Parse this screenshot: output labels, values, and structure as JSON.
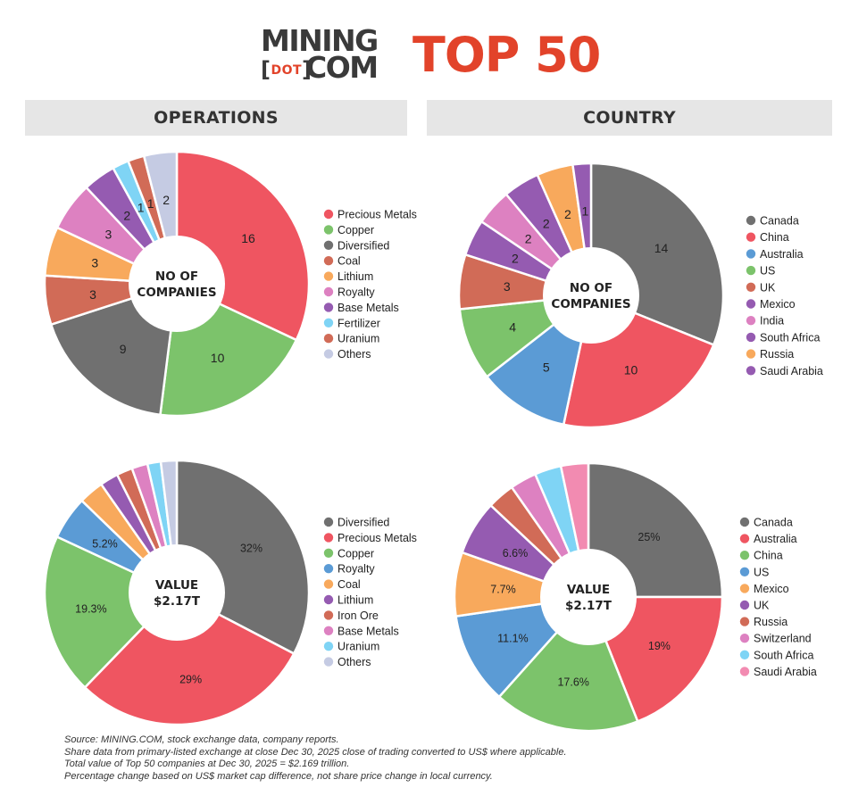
{
  "header": {
    "logo_line1": "MINING",
    "logo_dot": "DOT",
    "logo_line2": "COM",
    "title": "TOP 50"
  },
  "sections": {
    "operations": "OPERATIONS",
    "country": "COUNTRY"
  },
  "colors": {
    "accent": "#e2432a",
    "gray": "#707070",
    "red": "#ef5561",
    "green": "#7cc36b",
    "blue": "#5b9bd5",
    "orange": "#f8a95c",
    "terracotta": "#d16b57",
    "purple": "#955bb1",
    "pink": "#dd81c1",
    "lightblue": "#7fd4f5",
    "lavender": "#c5cbe3",
    "rose": "#f28bb1"
  },
  "chart_data": [
    {
      "type": "pie",
      "name": "operations-count",
      "center_label": [
        "NO OF",
        "COMPANIES"
      ],
      "categories": [
        "Precious Metals",
        "Copper",
        "Diversified",
        "Coal",
        "Lithium",
        "Royalty",
        "Base Metals",
        "Fertilizer",
        "Uranium",
        "Others"
      ],
      "values": [
        16,
        10,
        9,
        3,
        3,
        3,
        2,
        1,
        1,
        2
      ],
      "labels": [
        "16",
        "10",
        "9",
        "3",
        "3",
        "3",
        "2",
        "1",
        "1",
        "2"
      ],
      "slice_colors": [
        "#ef5561",
        "#7cc36b",
        "#707070",
        "#d16b57",
        "#f8a95c",
        "#dd81c1",
        "#955bb1",
        "#7fd4f5",
        "#d16b57",
        "#c5cbe3"
      ],
      "legend_colors": [
        "#ef5561",
        "#7cc36b",
        "#707070",
        "#d16b57",
        "#f8a95c",
        "#dd81c1",
        "#955bb1",
        "#7fd4f5",
        "#d16b57",
        "#c5cbe3"
      ],
      "legend_position": "right"
    },
    {
      "type": "pie",
      "name": "country-count",
      "center_label": [
        "NO OF",
        "COMPANIES"
      ],
      "categories": [
        "Canada",
        "China",
        "Australia",
        "US",
        "UK",
        "Mexico",
        "India",
        "South Africa",
        "Russia",
        "Saudi Arabia"
      ],
      "values": [
        14,
        10,
        5,
        4,
        3,
        2,
        2,
        2,
        2,
        1
      ],
      "labels": [
        "14",
        "10",
        "5",
        "4",
        "3",
        "2",
        "2",
        "2",
        "2",
        "1"
      ],
      "slice_colors": [
        "#707070",
        "#ef5561",
        "#5b9bd5",
        "#7cc36b",
        "#d16b57",
        "#955bb1",
        "#dd81c1",
        "#955bb1",
        "#f8a95c",
        "#955bb1"
      ],
      "legend_colors": [
        "#707070",
        "#ef5561",
        "#5b9bd5",
        "#7cc36b",
        "#d16b57",
        "#955bb1",
        "#dd81c1",
        "#955bb1",
        "#f8a95c",
        "#955bb1"
      ],
      "legend_position": "right"
    },
    {
      "type": "pie",
      "name": "operations-value",
      "center_label": [
        "VALUE",
        "$2.17T"
      ],
      "categories": [
        "Diversified",
        "Precious Metals",
        "Copper",
        "Royalty",
        "Coal",
        "Lithium",
        "Iron Ore",
        "Base Metals",
        "Uranium",
        "Others"
      ],
      "values": [
        32,
        29,
        19.3,
        5.2,
        3,
        2.2,
        1.9,
        1.9,
        1.6,
        1.9
      ],
      "labels": [
        "32%",
        "29%",
        "19.3%",
        "5.2%",
        "",
        "",
        "",
        "",
        "",
        ""
      ],
      "slice_colors": [
        "#707070",
        "#ef5561",
        "#7cc36b",
        "#5b9bd5",
        "#f8a95c",
        "#955bb1",
        "#d16b57",
        "#dd81c1",
        "#7fd4f5",
        "#c5cbe3"
      ],
      "legend_colors": [
        "#707070",
        "#ef5561",
        "#7cc36b",
        "#5b9bd5",
        "#f8a95c",
        "#955bb1",
        "#d16b57",
        "#dd81c1",
        "#7fd4f5",
        "#c5cbe3"
      ],
      "legend_position": "right"
    },
    {
      "type": "pie",
      "name": "country-value",
      "center_label": [
        "VALUE",
        "$2.17T"
      ],
      "categories": [
        "Canada",
        "Australia",
        "China",
        "US",
        "Mexico",
        "UK",
        "Russia",
        "Switzerland",
        "South Africa",
        "Saudi Arabia"
      ],
      "values": [
        25,
        19,
        17.6,
        11.1,
        7.7,
        6.6,
        3.3,
        3.2,
        3.2,
        3.3
      ],
      "labels": [
        "25%",
        "19%",
        "17.6%",
        "11.1%",
        "7.7%",
        "6.6%",
        "",
        "",
        "",
        ""
      ],
      "slice_colors": [
        "#707070",
        "#ef5561",
        "#7cc36b",
        "#5b9bd5",
        "#f8a95c",
        "#955bb1",
        "#d16b57",
        "#dd81c1",
        "#7fd4f5",
        "#f28bb1"
      ],
      "legend_colors": [
        "#707070",
        "#ef5561",
        "#7cc36b",
        "#5b9bd5",
        "#f8a95c",
        "#955bb1",
        "#d16b57",
        "#dd81c1",
        "#7fd4f5",
        "#f28bb1"
      ],
      "legend_position": "right"
    }
  ],
  "footer": {
    "lines": [
      "Source: MINING.COM, stock exchange data, company reports.",
      "Share data from primary-listed exchange at close Dec 30, 2025 close of trading converted to US$ where applicable.",
      "Total value of Top 50 companies at Dec 30, 2025 = $2.169 trillion.",
      "Percentage change based on US$ market cap difference, not share price change in local currency."
    ]
  }
}
